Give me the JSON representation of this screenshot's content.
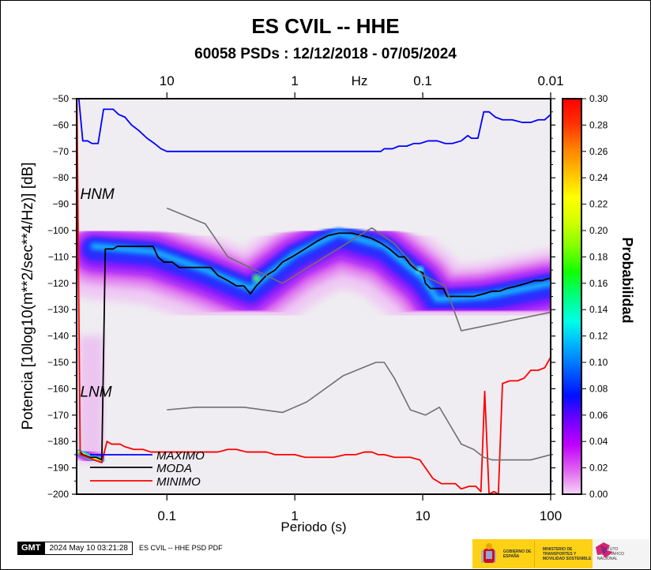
{
  "title": "ES CVIL -- HHE",
  "subtitle": "60058 PSDs : 12/12/2018 - 07/05/2024",
  "footer": {
    "gmt_badge": "GMT",
    "timestamp": "2024 May 10 03:21:28",
    "command": "ES CVIL -- HHE PSD PDF",
    "logo_gobierno": "GOBIERNO DE ESPAÑA",
    "logo_ministerio": "MINISTERIO DE TRANSPORTES Y MOVILIDAD SOSTENIBLE",
    "logo_ign": "INSTITUTO GEOGRÁFICO NACIONAL",
    "logo_ign_mark": "ign"
  },
  "chart_data": {
    "type": "heatmap",
    "title": "ES CVIL -- HHE",
    "subtitle": "60058 PSDs : 12/12/2018 - 07/05/2024",
    "xlabel": "Periodo (s)",
    "x2label": "Hz",
    "ylabel": "Potencia [10log10(m**2/sec**4/Hz)] [dB]",
    "xscale": "log",
    "xlim": [
      0.0197,
      100
    ],
    "ylim": [
      -200,
      -50
    ],
    "x_ticks": [
      0.1,
      1,
      10,
      100
    ],
    "x_tick_labels": [
      "0.1",
      "1",
      "10",
      "100"
    ],
    "x2_ticks_hz": [
      10,
      1,
      0.1,
      0.01
    ],
    "x2_tick_labels": [
      "10",
      "1",
      "0.1",
      "0.01"
    ],
    "y_ticks": [
      -50,
      -60,
      -70,
      -80,
      -90,
      -100,
      -110,
      -120,
      -130,
      -140,
      -150,
      -160,
      -170,
      -180,
      -190,
      -200
    ],
    "y_tick_labels": [
      "−50",
      "−60",
      "−70",
      "−80",
      "−90",
      "−100",
      "−110",
      "−120",
      "−130",
      "−140",
      "−150",
      "−160",
      "−170",
      "−180",
      "−190",
      "−200"
    ],
    "colorbar": {
      "label": "Probabilidad",
      "range": [
        0.0,
        0.3
      ],
      "ticks": [
        "0.00",
        "0.02",
        "0.04",
        "0.06",
        "0.08",
        "0.10",
        "0.12",
        "0.14",
        "0.16",
        "0.18",
        "0.20",
        "0.22",
        "0.24",
        "0.26",
        "0.28",
        "0.30"
      ],
      "colors": [
        "#f4d6f4",
        "#e060f0",
        "#c000ff",
        "#7000ff",
        "#0010ff",
        "#0060ff",
        "#00b0ff",
        "#00ffe8",
        "#00ff80",
        "#10ff00",
        "#80ff00",
        "#d0ff00",
        "#ffff00",
        "#ffc000",
        "#ff8000",
        "#ff3000",
        "#ff0000"
      ]
    },
    "annotations": [
      {
        "text": "HNM",
        "x": 0.021,
        "y": -88
      },
      {
        "text": "LNM",
        "x": 0.021,
        "y": -163
      }
    ],
    "legend": {
      "placement": "bottom-left",
      "entries": [
        {
          "label": "MAXIMO",
          "color": "#0000ff"
        },
        {
          "label": "MODA",
          "color": "#000000"
        },
        {
          "label": "MINIMO",
          "color": "#ff0000"
        }
      ]
    },
    "series": [
      {
        "name": "MAXIMO",
        "color": "#0000ff",
        "points": [
          [
            0.0205,
            -50
          ],
          [
            0.022,
            -66
          ],
          [
            0.024,
            -66
          ],
          [
            0.026,
            -67
          ],
          [
            0.029,
            -67
          ],
          [
            0.032,
            -54
          ],
          [
            0.038,
            -54
          ],
          [
            0.042,
            -56
          ],
          [
            0.047,
            -57
          ],
          [
            0.053,
            -60
          ],
          [
            0.06,
            -62
          ],
          [
            0.07,
            -65
          ],
          [
            0.08,
            -67
          ],
          [
            0.09,
            -69
          ],
          [
            0.1,
            -70
          ],
          [
            0.2,
            -70
          ],
          [
            0.5,
            -70
          ],
          [
            1,
            -70
          ],
          [
            2,
            -70
          ],
          [
            4,
            -70
          ],
          [
            4.7,
            -70
          ],
          [
            5,
            -69
          ],
          [
            5.8,
            -69
          ],
          [
            6.5,
            -68
          ],
          [
            7.5,
            -68
          ],
          [
            8.5,
            -67
          ],
          [
            9.5,
            -67
          ],
          [
            11,
            -66
          ],
          [
            13,
            -66
          ],
          [
            15,
            -67
          ],
          [
            17,
            -67
          ],
          [
            20,
            -66
          ],
          [
            22.5,
            -64
          ],
          [
            24,
            -65
          ],
          [
            27,
            -65
          ],
          [
            30,
            -55
          ],
          [
            33,
            -55
          ],
          [
            37,
            -57
          ],
          [
            42,
            -58
          ],
          [
            50,
            -58
          ],
          [
            60,
            -59
          ],
          [
            70,
            -59
          ],
          [
            80,
            -58
          ],
          [
            90,
            -58
          ],
          [
            100,
            -56
          ]
        ]
      },
      {
        "name": "MODA",
        "color": "#000000",
        "points": [
          [
            0.021,
            -184
          ],
          [
            0.022,
            -185
          ],
          [
            0.025,
            -186
          ],
          [
            0.028,
            -186
          ],
          [
            0.031,
            -187
          ],
          [
            0.033,
            -107
          ],
          [
            0.035,
            -107
          ],
          [
            0.038,
            -107
          ],
          [
            0.041,
            -106
          ],
          [
            0.05,
            -106
          ],
          [
            0.07,
            -106
          ],
          [
            0.078,
            -106
          ],
          [
            0.085,
            -110
          ],
          [
            0.095,
            -112
          ],
          [
            0.11,
            -112
          ],
          [
            0.125,
            -114
          ],
          [
            0.15,
            -114
          ],
          [
            0.2,
            -114
          ],
          [
            0.22,
            -114
          ],
          [
            0.25,
            -117
          ],
          [
            0.3,
            -119
          ],
          [
            0.35,
            -121
          ],
          [
            0.4,
            -121
          ],
          [
            0.45,
            -124
          ],
          [
            0.5,
            -121
          ],
          [
            0.6,
            -117
          ],
          [
            0.7,
            -115
          ],
          [
            0.8,
            -112
          ],
          [
            0.95,
            -110
          ],
          [
            1.2,
            -107
          ],
          [
            1.5,
            -104
          ],
          [
            1.8,
            -102
          ],
          [
            2.2,
            -101
          ],
          [
            2.8,
            -101
          ],
          [
            3.4,
            -102
          ],
          [
            4,
            -103
          ],
          [
            4.8,
            -105
          ],
          [
            5.5,
            -107
          ],
          [
            6.5,
            -110
          ],
          [
            7.2,
            -110
          ],
          [
            8,
            -113
          ],
          [
            9,
            -115
          ],
          [
            10,
            -116
          ],
          [
            10.5,
            -120
          ],
          [
            11.5,
            -122
          ],
          [
            13,
            -122
          ],
          [
            14.5,
            -122
          ],
          [
            15.5,
            -125
          ],
          [
            17,
            -125
          ],
          [
            20,
            -125
          ],
          [
            25,
            -125
          ],
          [
            30,
            -124
          ],
          [
            35,
            -123
          ],
          [
            40,
            -123
          ],
          [
            45,
            -122
          ],
          [
            55,
            -121
          ],
          [
            65,
            -120
          ],
          [
            75,
            -119
          ],
          [
            85,
            -119
          ],
          [
            100,
            -118
          ]
        ]
      },
      {
        "name": "MINIMO",
        "color": "#ff0000",
        "points": [
          [
            0.0198,
            -50
          ],
          [
            0.021,
            -185
          ],
          [
            0.024,
            -186
          ],
          [
            0.027,
            -187
          ],
          [
            0.031,
            -188
          ],
          [
            0.034,
            -180
          ],
          [
            0.037,
            -181
          ],
          [
            0.043,
            -181
          ],
          [
            0.047,
            -182
          ],
          [
            0.055,
            -183
          ],
          [
            0.065,
            -183
          ],
          [
            0.075,
            -184
          ],
          [
            0.1,
            -184
          ],
          [
            0.2,
            -184
          ],
          [
            0.25,
            -184
          ],
          [
            0.3,
            -183
          ],
          [
            0.35,
            -183
          ],
          [
            0.42,
            -184
          ],
          [
            0.5,
            -184
          ],
          [
            0.6,
            -184
          ],
          [
            0.7,
            -185
          ],
          [
            0.8,
            -185
          ],
          [
            1,
            -185
          ],
          [
            1.2,
            -186
          ],
          [
            1.5,
            -186
          ],
          [
            2,
            -186
          ],
          [
            2.5,
            -185
          ],
          [
            3,
            -185
          ],
          [
            3.5,
            -184
          ],
          [
            4,
            -184
          ],
          [
            4.5,
            -185
          ],
          [
            5,
            -185
          ],
          [
            6,
            -186
          ],
          [
            7,
            -186
          ],
          [
            8,
            -186
          ],
          [
            9.5,
            -187
          ],
          [
            10.5,
            -190
          ],
          [
            12,
            -194
          ],
          [
            14,
            -196
          ],
          [
            16,
            -196
          ],
          [
            18,
            -196
          ],
          [
            20,
            -198
          ],
          [
            23,
            -197
          ],
          [
            26,
            -197
          ],
          [
            28.5,
            -199
          ],
          [
            30.5,
            -161
          ],
          [
            33,
            -200
          ],
          [
            36,
            -199
          ],
          [
            39,
            -200
          ],
          [
            42,
            -158
          ],
          [
            48,
            -157
          ],
          [
            55,
            -157
          ],
          [
            62,
            -156
          ],
          [
            70,
            -153
          ],
          [
            80,
            -153
          ],
          [
            90,
            -152
          ],
          [
            100,
            -148
          ]
        ]
      },
      {
        "name": "HNM",
        "color": "#707070",
        "points": [
          [
            0.1,
            -91.5
          ],
          [
            0.2,
            -97.5
          ],
          [
            0.3,
            -110
          ],
          [
            0.8,
            -120
          ],
          [
            4,
            -99
          ],
          [
            6,
            -105
          ],
          [
            10,
            -117
          ],
          [
            15,
            -121
          ],
          [
            20,
            -138
          ],
          [
            100,
            -131
          ]
        ]
      },
      {
        "name": "LNM",
        "color": "#707070",
        "points": [
          [
            0.1,
            -168
          ],
          [
            0.17,
            -167
          ],
          [
            0.4,
            -167
          ],
          [
            0.8,
            -169
          ],
          [
            1.24,
            -165
          ],
          [
            2.4,
            -155
          ],
          [
            4.3,
            -150
          ],
          [
            5,
            -150
          ],
          [
            6,
            -156
          ],
          [
            8,
            -168
          ],
          [
            10.5,
            -170
          ],
          [
            13.5,
            -167
          ],
          [
            20,
            -181
          ],
          [
            25,
            -183
          ],
          [
            30,
            -186
          ],
          [
            35,
            -187
          ],
          [
            70,
            -187
          ],
          [
            100,
            -185
          ]
        ]
      }
    ],
    "pdf_density": {
      "description": "Probability density of PSDs; main band follows MODA, ~0.02-0.12 near the mode, higher (0.2-0.3) at the short-period end near -186 dB",
      "ridge": [
        [
          0.027,
          -106
        ],
        [
          0.078,
          -108
        ],
        [
          0.2,
          -115
        ],
        [
          0.45,
          -122
        ],
        [
          1,
          -109
        ],
        [
          2.2,
          -101
        ],
        [
          5,
          -106
        ],
        [
          10,
          -118
        ],
        [
          13,
          -126
        ],
        [
          30,
          -125
        ],
        [
          100,
          -120
        ]
      ]
    }
  }
}
